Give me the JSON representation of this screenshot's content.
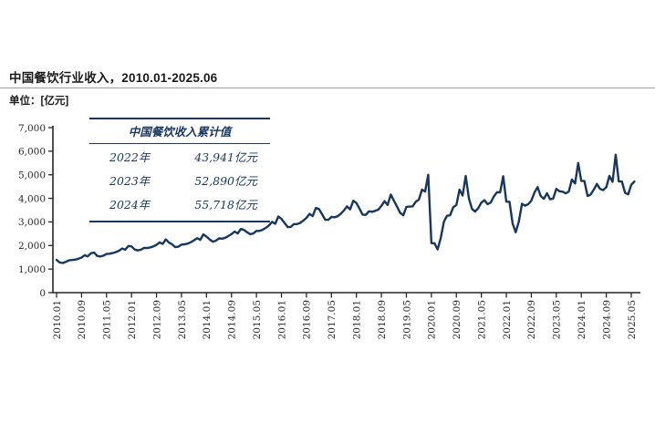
{
  "page": {
    "title": "中国餐饮行业收入，2010.01-2025.06",
    "unit_label": "单位：[亿元]"
  },
  "summary_table": {
    "title": "中国餐饮收入累计值",
    "rows": [
      {
        "year": "2022年",
        "value": "43,941亿元"
      },
      {
        "year": "2023年",
        "value": "52,890亿元"
      },
      {
        "year": "2024年",
        "value": "55,718亿元"
      }
    ]
  },
  "colors": {
    "line": "#17375E",
    "axis": "#262626",
    "table_border": "#17375E",
    "table_text": "#17375E",
    "title_text": "#1a1a1a",
    "rule": "#9f9f9f"
  },
  "chart_data": {
    "type": "line",
    "title": "中国餐饮行业收入，2010.01-2025.06",
    "ylabel": "亿元",
    "ylim": [
      0,
      7000
    ],
    "y_tick_step": 1000,
    "y_tick_labels": [
      "0",
      "1,000",
      "2,000",
      "3,000",
      "4,000",
      "5,000",
      "6,000",
      "7,000"
    ],
    "grid": false,
    "legend": null,
    "x_monthly_start": "2010.01",
    "x_monthly_end": "2025.06",
    "x_tick_interval_months": 8,
    "x_tick_labels": [
      "2010.01",
      "2010.09",
      "2011.05",
      "2012.01",
      "2012.09",
      "2013.05",
      "2014.01",
      "2014.09",
      "2015.05",
      "2016.01",
      "2016.09",
      "2017.05",
      "2018.01",
      "2018.09",
      "2019.05",
      "2020.01",
      "2020.09",
      "2021.05",
      "2022.01",
      "2022.09",
      "2023.05",
      "2024.01",
      "2024.09",
      "2025.05"
    ],
    "values": [
      1390,
      1280,
      1255,
      1310,
      1370,
      1385,
      1400,
      1440,
      1490,
      1590,
      1540,
      1670,
      1700,
      1560,
      1530,
      1570,
      1640,
      1650,
      1680,
      1720,
      1780,
      1870,
      1820,
      1980,
      1960,
      1830,
      1790,
      1820,
      1900,
      1890,
      1920,
      1960,
      2030,
      2130,
      2070,
      2260,
      2120,
      2050,
      1930,
      1950,
      2040,
      2050,
      2080,
      2140,
      2220,
      2310,
      2240,
      2470,
      2380,
      2260,
      2160,
      2200,
      2300,
      2290,
      2330,
      2400,
      2480,
      2590,
      2510,
      2700,
      2660,
      2560,
      2480,
      2510,
      2620,
      2620,
      2670,
      2750,
      2850,
      3000,
      2920,
      3230,
      3130,
      2960,
      2780,
      2790,
      2910,
      2910,
      2960,
      3060,
      3170,
      3340,
      3250,
      3590,
      3550,
      3330,
      3090,
      3090,
      3210,
      3200,
      3240,
      3350,
      3490,
      3660,
      3530,
      3900,
      3800,
      3560,
      3310,
      3300,
      3450,
      3430,
      3470,
      3520,
      3680,
      3880,
      3720,
      4160,
      3900,
      3650,
      3390,
      3280,
      3640,
      3650,
      3660,
      3860,
      3950,
      4370,
      4290,
      5000,
      2100,
      2095,
      1832,
      2310,
      3010,
      3260,
      3280,
      3620,
      3720,
      4370,
      4120,
      4950,
      4000,
      3550,
      3440,
      3580,
      3820,
      3920,
      3750,
      3820,
      4080,
      4260,
      4250,
      4940,
      3860,
      3855,
      2935,
      2560,
      3010,
      3770,
      3690,
      3750,
      3900,
      4250,
      4480,
      4100,
      3980,
      4215,
      3960,
      3990,
      4400,
      4300,
      4280,
      4210,
      4290,
      4800,
      4630,
      5500,
      4740,
      4735,
      4100,
      4160,
      4370,
      4610,
      4400,
      4350,
      4470,
      4950,
      4700,
      5850,
      4720,
      4715,
      4235,
      4170,
      4580,
      4710
    ]
  }
}
